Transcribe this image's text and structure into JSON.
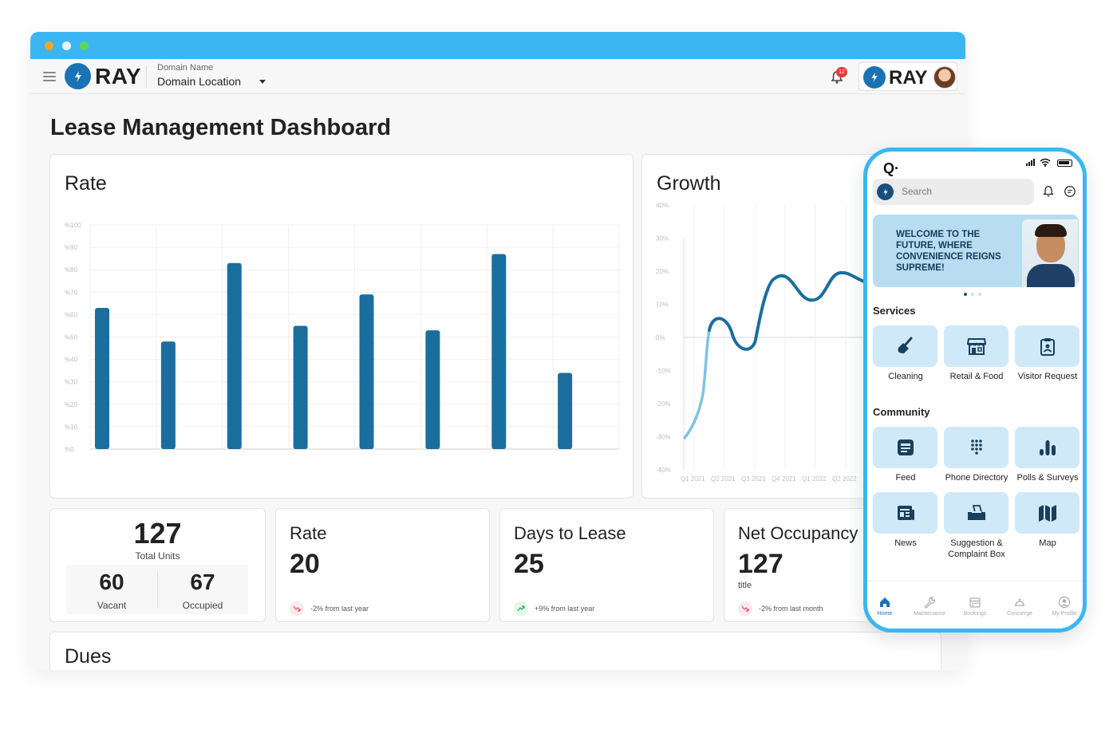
{
  "header": {
    "app_name": "RAY",
    "domain_label": "Domain Name",
    "domain_value": "Domain Location",
    "notification_count": "12",
    "brand_name": "RAY"
  },
  "page": {
    "title": "Lease Management Dashboard"
  },
  "rate_chart": {
    "title": "Rate",
    "chart_data": {
      "type": "bar",
      "y_ticks": [
        "%100",
        "%90",
        "%80",
        "%70",
        "%60",
        "%50",
        "%40",
        "%30",
        "%20",
        "%10",
        "%0"
      ],
      "values": [
        63,
        48,
        83,
        55,
        69,
        53,
        87,
        34
      ],
      "ylim": [
        0,
        100
      ],
      "color": "#1a6e9e"
    }
  },
  "growth_chart": {
    "title": "Growth",
    "chart_data": {
      "type": "line",
      "y_ticks": [
        "40%",
        "30%",
        "20%",
        "10%",
        "0%",
        "-10%",
        "-20%",
        "-30%",
        "-40%"
      ],
      "x_ticks": [
        "Q1 2021",
        "Q2 2021",
        "Q3 2021",
        "Q4 2021",
        "Q1 2022",
        "Q2 2022"
      ],
      "ylim": [
        -40,
        40
      ],
      "series_colors": [
        "#7fc2e6",
        "#1a6e9e"
      ]
    }
  },
  "stats": {
    "total_units": {
      "value": "127",
      "label": "Total Units",
      "vacant_value": "60",
      "vacant_label": "Vacant",
      "occupied_value": "67",
      "occupied_label": "Occupied"
    },
    "rate": {
      "label": "Rate",
      "value": "20",
      "trend": "-2% from last year"
    },
    "days_to_lease": {
      "label": "Days to Lease",
      "value": "25",
      "trend": "+9% from last year"
    },
    "net_occupancy": {
      "label": "Net Occupancy",
      "value": "127",
      "sub": "title",
      "trend": "-2% from last month"
    }
  },
  "dues": {
    "title": "Dues"
  },
  "phone": {
    "search_placeholder": "Search",
    "banner_text": "WELCOME TO THE FUTURE, WHERE CONVENIENCE REIGNS SUPREME!",
    "services_title": "Services",
    "services": [
      {
        "label": "Cleaning",
        "icon": "broom-icon"
      },
      {
        "label": "Retail & Food",
        "icon": "store-icon"
      },
      {
        "label": "Visitor Request",
        "icon": "clipboard-icon"
      }
    ],
    "community_title": "Community",
    "community": [
      {
        "label": "Feed",
        "icon": "feed-icon"
      },
      {
        "label": "Phone Directory",
        "icon": "dialpad-icon"
      },
      {
        "label": "Polls & Surveys",
        "icon": "bar-chart-icon"
      },
      {
        "label": "News",
        "icon": "newspaper-icon"
      },
      {
        "label": "Suggestion & Complaint Box",
        "icon": "ballot-box-icon"
      },
      {
        "label": "Map",
        "icon": "map-icon"
      }
    ],
    "nav": [
      "Home",
      "Maintenance",
      "Bookings",
      "Concierge",
      "My Profile"
    ]
  },
  "colors": {
    "accent": "#3bb6f3",
    "brand": "#1a73b4",
    "bar": "#1a6e9e",
    "tile": "#cfe9f9"
  }
}
